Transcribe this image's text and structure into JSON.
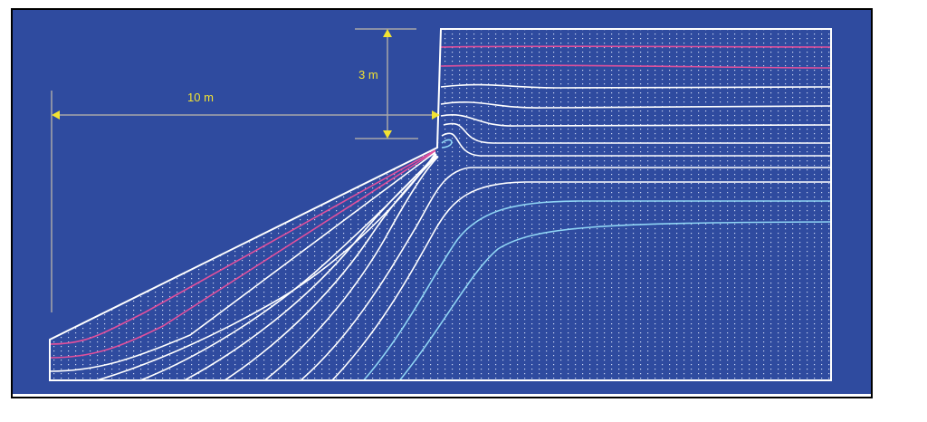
{
  "labels": {
    "height": "3 m",
    "length": "10 m"
  },
  "colors": {
    "background": "#2f4b9f",
    "dimension": "#f2e232",
    "guide": "#a8a8a8",
    "pink": "#e0509c",
    "white": "#ffffff",
    "lightblue": "#8fd4f4"
  }
}
